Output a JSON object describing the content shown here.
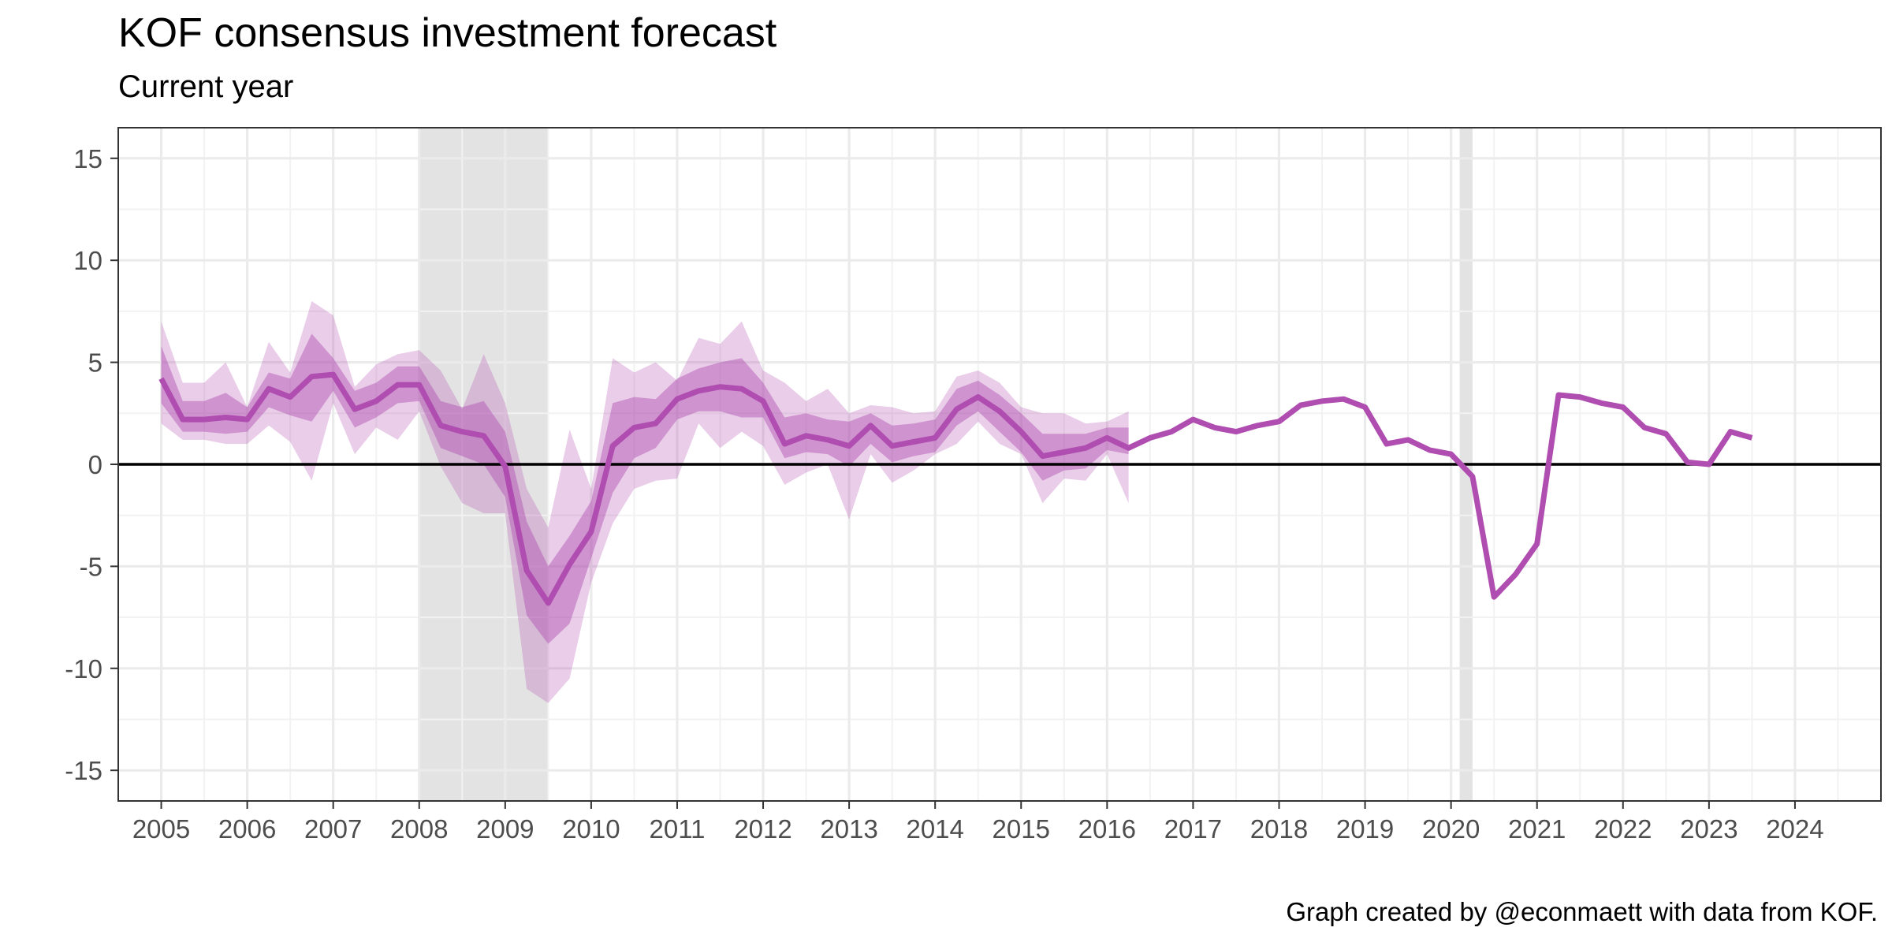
{
  "title": "KOF consensus investment forecast",
  "subtitle": "Current year",
  "caption": "Graph created by @econmaett with data from KOF.",
  "colors": {
    "line": "#b04db0",
    "band_inner": "#b04db0",
    "band_outer": "#b04db0",
    "recession": "#d9d9d9",
    "grid_major": "#ebebeb",
    "grid_minor": "#f2f2f2",
    "zero_line": "#000000"
  },
  "chart_data": {
    "type": "line",
    "title": "KOF consensus investment forecast",
    "subtitle": "Current year",
    "xlabel": "",
    "ylabel": "",
    "xlim": [
      2004.5,
      2025.0
    ],
    "ylim": [
      -16.5,
      16.5
    ],
    "x_ticks": [
      2005,
      2006,
      2007,
      2008,
      2009,
      2010,
      2011,
      2012,
      2013,
      2014,
      2015,
      2016,
      2017,
      2018,
      2019,
      2020,
      2021,
      2022,
      2023,
      2024
    ],
    "x_tick_labels": [
      "2005",
      "2006",
      "2007",
      "2008",
      "2009",
      "2010",
      "2011",
      "2012",
      "2013",
      "2014",
      "2015",
      "2016",
      "2017",
      "2018",
      "2019",
      "2020",
      "2021",
      "2022",
      "2023",
      "2024"
    ],
    "y_ticks": [
      -15,
      -10,
      -5,
      0,
      5,
      10,
      15
    ],
    "y_tick_labels": [
      "-15",
      "-10",
      "-5",
      "0",
      "5",
      "10",
      "15"
    ],
    "grid": true,
    "zero_line": true,
    "recession_shading": [
      {
        "start": 2008.0,
        "end": 2009.5
      },
      {
        "start": 2020.1,
        "end": 2020.25
      }
    ],
    "series": [
      {
        "type": "line",
        "x": [
          2005.0,
          2005.25,
          2005.5,
          2005.75,
          2006.0,
          2006.25,
          2006.5,
          2006.75,
          2007.0,
          2007.25,
          2007.5,
          2007.75,
          2008.0,
          2008.25,
          2008.5,
          2008.75,
          2009.0,
          2009.25,
          2009.5,
          2009.75,
          2010.0,
          2010.25,
          2010.5,
          2010.75,
          2011.0,
          2011.25,
          2011.5,
          2011.75,
          2012.0,
          2012.25,
          2012.5,
          2012.75,
          2013.0,
          2013.25,
          2013.5,
          2013.75,
          2014.0,
          2014.25,
          2014.5,
          2014.75,
          2015.0,
          2015.25,
          2015.5,
          2015.75,
          2016.0,
          2016.25,
          2016.5,
          2016.75,
          2017.0,
          2017.25,
          2017.5,
          2017.75,
          2018.0,
          2018.25,
          2018.5,
          2018.75,
          2019.0,
          2019.25,
          2019.5,
          2019.75,
          2020.0,
          2020.25,
          2020.5,
          2020.75,
          2021.0,
          2021.25,
          2021.5,
          2021.75,
          2022.0,
          2022.25,
          2022.5,
          2022.75,
          2023.0,
          2023.25,
          2023.5
        ],
        "y": [
          4.2,
          2.2,
          2.2,
          2.3,
          2.2,
          3.7,
          3.3,
          4.3,
          4.4,
          2.7,
          3.1,
          3.9,
          3.9,
          1.9,
          1.6,
          1.4,
          -0.1,
          -5.2,
          -6.8,
          -4.9,
          -3.3,
          0.9,
          1.8,
          2.0,
          3.2,
          3.6,
          3.8,
          3.7,
          3.1,
          1.0,
          1.4,
          1.2,
          0.9,
          1.9,
          0.9,
          1.1,
          1.3,
          2.7,
          3.3,
          2.6,
          1.6,
          0.4,
          0.6,
          0.8,
          1.3,
          0.8,
          1.3,
          1.6,
          2.2,
          1.8,
          1.6,
          1.9,
          2.1,
          2.9,
          3.1,
          3.2,
          2.8,
          1.0,
          1.2,
          0.7,
          0.5,
          -0.6,
          -6.5,
          -5.4,
          -3.9,
          3.4,
          3.3,
          3.0,
          2.8,
          1.8,
          1.5,
          0.1,
          0.0,
          1.6,
          1.3
        ]
      },
      {
        "type": "band",
        "x": [
          2005.0,
          2005.25,
          2005.5,
          2005.75,
          2006.0,
          2006.25,
          2006.5,
          2006.75,
          2007.0,
          2007.25,
          2007.5,
          2007.75,
          2008.0,
          2008.25,
          2008.5,
          2008.75,
          2009.0,
          2009.25,
          2009.5,
          2009.75,
          2010.0,
          2010.25,
          2010.5,
          2010.75,
          2011.0,
          2011.25,
          2011.5,
          2011.75,
          2012.0,
          2012.25,
          2012.5,
          2012.75,
          2013.0,
          2013.25,
          2013.5,
          2013.75,
          2014.0,
          2014.25,
          2014.5,
          2014.75,
          2015.0,
          2015.25,
          2015.5,
          2015.75,
          2016.0,
          2016.25
        ],
        "lower": [
          3.0,
          1.6,
          1.6,
          1.5,
          1.6,
          2.8,
          2.4,
          2.1,
          3.6,
          1.8,
          2.3,
          3.0,
          3.1,
          0.8,
          0.4,
          0.0,
          -1.6,
          -7.4,
          -8.8,
          -7.8,
          -4.6,
          -1.4,
          0.3,
          0.8,
          2.2,
          2.6,
          2.6,
          2.3,
          2.3,
          0.3,
          0.6,
          0.5,
          -0.1,
          1.0,
          0.1,
          0.4,
          0.6,
          1.9,
          2.6,
          1.6,
          0.6,
          -0.8,
          -0.3,
          -0.2,
          0.7,
          0.5
        ],
        "upper": [
          5.8,
          3.1,
          3.1,
          3.5,
          2.8,
          4.5,
          4.2,
          6.4,
          5.2,
          3.6,
          4.0,
          4.8,
          4.8,
          3.1,
          2.8,
          3.1,
          1.6,
          -2.8,
          -5.0,
          -3.5,
          -1.8,
          3.0,
          3.3,
          3.2,
          4.2,
          4.7,
          5.0,
          5.2,
          4.0,
          2.3,
          2.5,
          2.2,
          2.1,
          2.5,
          1.9,
          2.0,
          2.2,
          3.7,
          4.1,
          3.4,
          2.5,
          1.5,
          1.5,
          1.5,
          1.8,
          1.8
        ]
      },
      {
        "type": "band",
        "x": [
          2005.0,
          2005.25,
          2005.5,
          2005.75,
          2006.0,
          2006.25,
          2006.5,
          2006.75,
          2007.0,
          2007.25,
          2007.5,
          2007.75,
          2008.0,
          2008.25,
          2008.5,
          2008.75,
          2009.0,
          2009.25,
          2009.5,
          2009.75,
          2010.0,
          2010.25,
          2010.5,
          2010.75,
          2011.0,
          2011.25,
          2011.5,
          2011.75,
          2012.0,
          2012.25,
          2012.5,
          2012.75,
          2013.0,
          2013.25,
          2013.5,
          2013.75,
          2014.0,
          2014.25,
          2014.5,
          2014.75,
          2015.0,
          2015.25,
          2015.5,
          2015.75,
          2016.0,
          2016.25
        ],
        "lower": [
          2.0,
          1.2,
          1.2,
          1.0,
          1.0,
          1.9,
          1.1,
          -0.8,
          3.0,
          0.5,
          1.8,
          1.2,
          2.6,
          -0.1,
          -1.9,
          -2.4,
          -2.4,
          -11.0,
          -11.7,
          -10.5,
          -5.8,
          -2.9,
          -1.2,
          -0.8,
          -0.7,
          2.0,
          0.8,
          1.6,
          0.9,
          -1.0,
          -0.4,
          0.0,
          -2.7,
          0.5,
          -0.9,
          -0.3,
          0.5,
          1.0,
          2.1,
          1.0,
          0.5,
          -1.9,
          -0.7,
          -0.8,
          0.5,
          -1.9
        ],
        "upper": [
          7.0,
          4.0,
          4.0,
          5.0,
          2.8,
          6.0,
          4.5,
          8.0,
          7.3,
          3.8,
          4.9,
          5.4,
          5.6,
          4.6,
          2.7,
          5.4,
          3.0,
          -1.2,
          -3.1,
          1.7,
          -1.2,
          5.2,
          4.5,
          5.0,
          4.1,
          6.2,
          5.9,
          7.0,
          4.6,
          4.0,
          3.1,
          3.7,
          2.5,
          2.9,
          2.8,
          2.5,
          2.6,
          4.3,
          4.6,
          4.0,
          2.8,
          2.5,
          2.5,
          2.0,
          2.1,
          2.6
        ]
      }
    ]
  }
}
